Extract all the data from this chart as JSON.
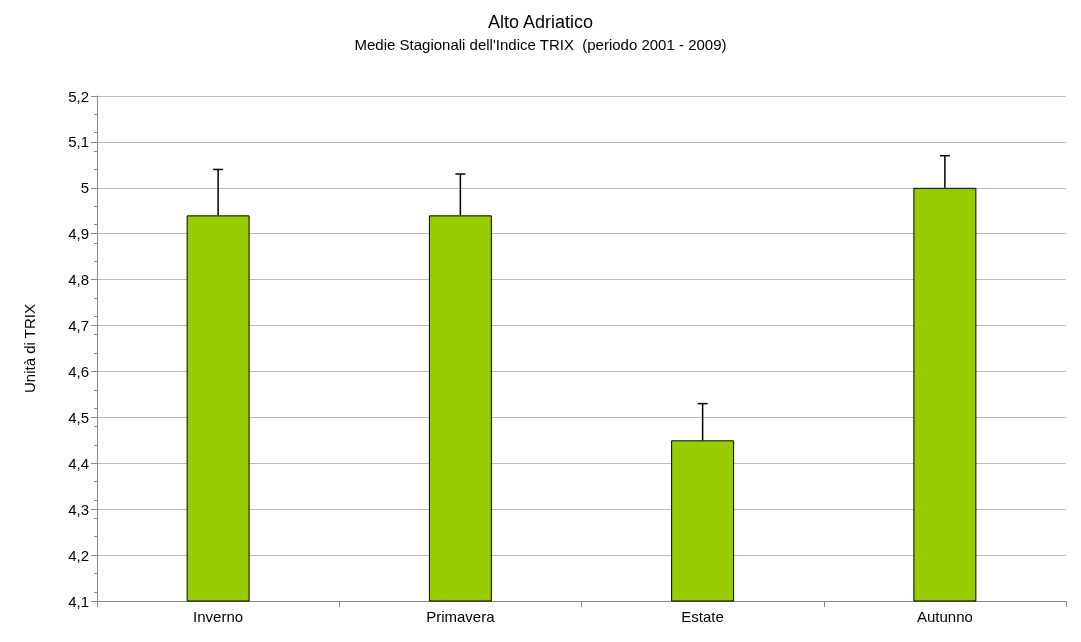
{
  "chart_data": {
    "type": "bar",
    "title": "Alto Adriatico",
    "subtitle": "Medie Stagionali dell'Indice TRIX  (periodo 2001 - 2009)",
    "ylabel": "Unità di TRIX",
    "categories": [
      "Inverno",
      "Primavera",
      "Estate",
      "Autunno"
    ],
    "values": [
      4.94,
      4.94,
      4.45,
      5.0
    ],
    "errors": [
      [
        4.94,
        5.04
      ],
      [
        4.94,
        5.03
      ],
      [
        4.45,
        4.53
      ],
      [
        5.0,
        5.07
      ]
    ],
    "color": "#99cc00",
    "ylim": [
      4.1,
      5.2
    ],
    "yticks": [
      {
        "value": 4.1,
        "label": "4,1"
      },
      {
        "value": 4.2,
        "label": "4,2"
      },
      {
        "value": 4.3,
        "label": "4,3"
      },
      {
        "value": 4.4,
        "label": "4,4"
      },
      {
        "value": 4.5,
        "label": "4,5"
      },
      {
        "value": 4.6,
        "label": "4,6"
      },
      {
        "value": 4.7,
        "label": "4,7"
      },
      {
        "value": 4.8,
        "label": "4,8"
      },
      {
        "value": 4.9,
        "label": "4,9"
      },
      {
        "value": 5,
        "label": "5"
      },
      {
        "value": 5.1,
        "label": "5,1"
      },
      {
        "value": 5.2,
        "label": "5,2"
      }
    ],
    "grid": "y"
  }
}
